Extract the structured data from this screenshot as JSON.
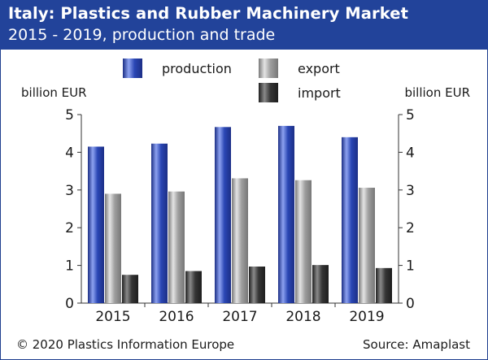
{
  "header": {
    "title": "Italy: Plastics and Rubber Machinery Market",
    "subtitle": "2015 - 2019, production and trade"
  },
  "footer": {
    "copyright": "© 2020 Plastics Information Europe",
    "source": "Source: Amaplast"
  },
  "colors": {
    "header_bg": "#22439a",
    "production": "#2b44b0",
    "export": "#9a9a9a",
    "import": "#2e2e2e"
  },
  "chart_data": {
    "type": "bar",
    "categories": [
      "2015",
      "2016",
      "2017",
      "2018",
      "2019"
    ],
    "series": [
      {
        "name": "production",
        "values": [
          4.15,
          4.23,
          4.67,
          4.7,
          4.4
        ]
      },
      {
        "name": "export",
        "values": [
          2.9,
          2.96,
          3.31,
          3.26,
          3.06
        ]
      },
      {
        "name": "import",
        "values": [
          0.75,
          0.85,
          0.97,
          1.01,
          0.93
        ]
      }
    ],
    "ylabel_left": "billion EUR",
    "ylabel_right": "billion EUR",
    "ylim": [
      0,
      5
    ],
    "yticks": [
      "0",
      "1",
      "2",
      "3",
      "4",
      "5"
    ],
    "legend_position": "top",
    "grid": false
  }
}
